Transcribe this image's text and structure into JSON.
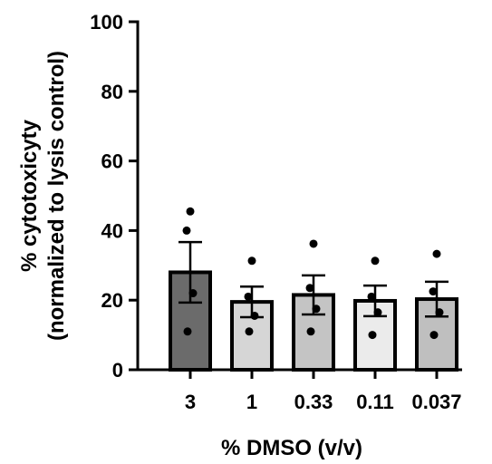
{
  "chart_data": {
    "type": "bar",
    "categories": [
      "3",
      "1",
      "0.33",
      "0.11",
      "0.037"
    ],
    "values": [
      28,
      19.5,
      21.5,
      19.8,
      20.3
    ],
    "error": [
      8.7,
      4.4,
      5.6,
      4.4,
      5.0
    ],
    "points": [
      [
        45.5,
        40,
        22,
        11
      ],
      [
        31.3,
        21,
        15.5,
        11
      ],
      [
        36.2,
        23.5,
        17.5,
        11
      ],
      [
        31.3,
        21,
        16.5,
        10
      ],
      [
        33.3,
        22.5,
        16.5,
        10
      ]
    ],
    "bar_colors": [
      "#6b6b6b",
      "#d6d6d6",
      "#c4c4c4",
      "#ebebeb",
      "#bfbfbf"
    ],
    "ylim": [
      0,
      100
    ],
    "yticks": [
      0,
      20,
      40,
      60,
      80,
      100
    ],
    "xlabel": "% DMSO (v/v)",
    "ylabel_line1": "% cytotoxicyty",
    "ylabel_line2": "(normalized to lysis control)",
    "grid": false
  }
}
